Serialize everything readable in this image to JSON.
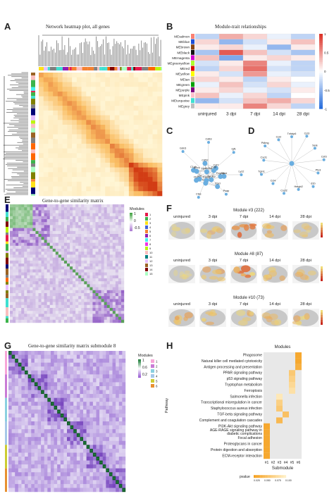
{
  "panelA": {
    "letter": "A",
    "title": "Network heatmap plot, all genes"
  },
  "panelB": {
    "letter": "B",
    "title": "Module-trait relationships",
    "modules": [
      "MEsalmon",
      "MEblue",
      "MEbrown",
      "MEblack",
      "MEmagenta",
      "MEgreenyellow",
      "MEred",
      "MEyellow",
      "MEtan",
      "MEgreen",
      "MEpurple",
      "MEpink",
      "MEturquoise",
      "MEgrey"
    ],
    "module_colors": [
      "#fa8072",
      "#1e4fd8",
      "#8b4513",
      "#111111",
      "#d000d0",
      "#adff2f",
      "#e00000",
      "#ffff00",
      "#d2b48c",
      "#00a000",
      "#800080",
      "#ffc0cb",
      "#40e0d0",
      "#bebebe"
    ],
    "columns": [
      "uninjured",
      "3 dpi",
      "7 dpi",
      "14 dpi",
      "28 dpi"
    ],
    "colorbar_ticks": [
      "1",
      "0.5",
      "0",
      "-0.5",
      "-1"
    ]
  },
  "panelC": {
    "letter": "C",
    "genes": [
      "Gdn3",
      "Cd63",
      "Gpnmb",
      "Igf1",
      "Lyz2",
      "Psap",
      "Ctss",
      "Cst7",
      "Tyrobp",
      "Ctsb",
      "Cd68",
      "C1qb",
      "Lgals3bp",
      "Cd9",
      "Fcgr2b",
      "Ctsd",
      "Trem2",
      "Apoe",
      "Lpl",
      "Cd74",
      "Cd52",
      "H2-Ab1"
    ],
    "gene_labels": [
      "Gdn3",
      "Cd63",
      "Igf1",
      "Lyz2",
      "Psap",
      "Ctss",
      "Cst7",
      "Apoe",
      "Tyrobp",
      "Cd68",
      "Ctsb",
      "C1qb",
      "Lgals3bp",
      "Cd9",
      "Fcgr2b",
      "Ctsd",
      "Trem2",
      "Lpl",
      "Cd74",
      "Cd52"
    ]
  },
  "panelD": {
    "letter": "D",
    "genes": [
      "Tnfaip6",
      "Ccl3",
      "Sele",
      "Csf3",
      "Ptx3",
      "Il1b",
      "Hmgb2",
      "Cxcl2",
      "Ccl4",
      "Tgm1",
      "Cxcl1",
      "Pdlmg",
      "Ccl2",
      "Cxcl10"
    ],
    "gene_labels": [
      "Tnfaip6",
      "Ccl3",
      "Sele",
      "Csf3",
      "Ptx3",
      "Il1b",
      "Hmgb2",
      "Cxcl2",
      "Ccl4",
      "Tgm1",
      "Cxcl1",
      "Pdlmg",
      "Ccl2"
    ]
  },
  "panelE": {
    "letter": "E",
    "title": "Gene-to-gene similarity matrix",
    "legend_title": "Modules",
    "legend_ticks": [
      "1",
      "0",
      "-0.5"
    ],
    "module_numbers": [
      "1",
      "2",
      "3",
      "4",
      "5",
      "6",
      "7",
      "8",
      "9",
      "10",
      "11",
      "12",
      "13",
      "14",
      "15"
    ]
  },
  "panelF": {
    "letter": "F",
    "rows": [
      {
        "title": "Module #3 (222)"
      },
      {
        "title": "Module #8 (87)"
      },
      {
        "title": "Module #10 (73)"
      }
    ],
    "columns": [
      "uninjured",
      "3 dpi",
      "7 dpi",
      "14 dpi",
      "28 dpi"
    ]
  },
  "panelG": {
    "letter": "G",
    "title": "Gene-to-gene similarity matrix submodule 8",
    "legend_title": "Modules",
    "legend_ticks": [
      "1",
      "0.6",
      "0.2"
    ],
    "submodules": [
      "1",
      "2",
      "3",
      "4",
      "5",
      "6"
    ]
  },
  "panelH": {
    "letter": "H",
    "title": "Modules",
    "ylabel": "Pathway",
    "xlabel": "Submodule",
    "pathways": [
      "Phagosome",
      "Natural killer cell mediated cytotoxicity",
      "Antigen processing and presentation",
      "PPAR signaling pathway",
      "p53 signaling pathway",
      "Tryptophan metabolism",
      "Ferroptosis",
      "Salmonella infection",
      "Transcriptional misregulation in cancer",
      "Staphylococcus aureus infection",
      "TGF-beta signaling pathway",
      "Complement and coagulation cascades",
      "PI3K-Akt signaling pathway",
      "AGE-RAGE signaling pathway in diabetic complications",
      "Focal adhesion",
      "Proteoglycans in cancer",
      "Protein digestion and absorption",
      "ECM-receptor interaction"
    ],
    "pathway_display": [
      "Phagosome",
      "Natural killer cell mediated cytotoxicity",
      "Antigen processing and presentation",
      "PPAR signaling pathway",
      "p53 signaling pathway",
      "Tryptophan metabolism",
      "Ferroptosis",
      "Salmonella infection",
      "Transcriptional misregulation in cancer",
      "Staphylococcus aureus infection",
      "TGF-beta signaling pathway",
      "Complement and coagulation cascades",
      "PI3K-Akt signaling pathway",
      "AGE-RAGE signaling pathway in",
      "diabetic complications",
      "Focal adhesion",
      "Proteoglycans in cancer",
      "Protein digestion and absorption",
      "ECM-receptor interaction"
    ],
    "submodules": [
      "#1",
      "#2",
      "#3",
      "#4",
      "#5",
      "#6"
    ],
    "pvalue_label": "pvalue",
    "pvalue_ticks": [
      "0.025",
      "0.050",
      "0.075",
      "0.100"
    ]
  }
}
